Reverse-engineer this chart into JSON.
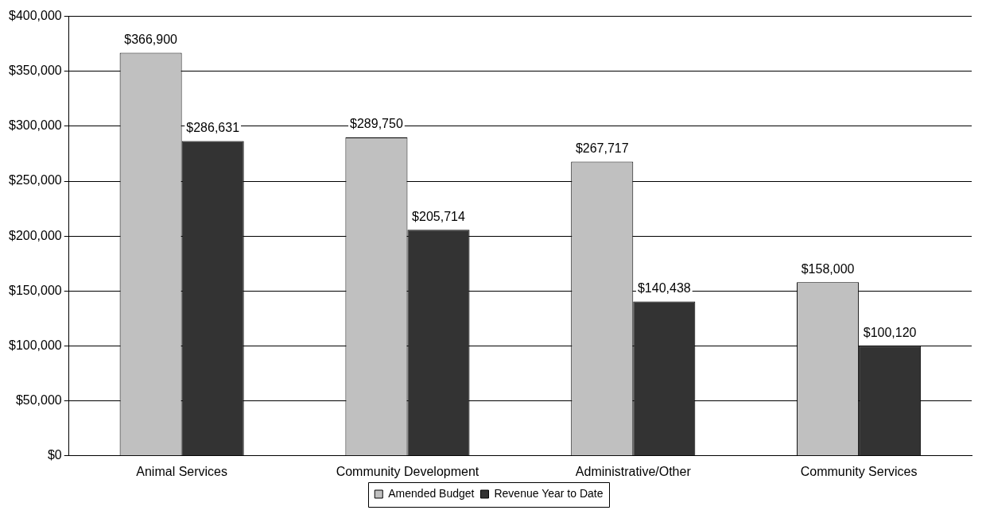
{
  "chart_data": {
    "type": "bar",
    "categories": [
      "Animal Services",
      "Community Development",
      "Administrative/Other",
      "Community Services"
    ],
    "series": [
      {
        "name": "Amended Budget",
        "color": "#c0c0c0",
        "values": [
          366900,
          289750,
          267717,
          158000
        ],
        "value_labels": [
          "$366,900",
          "$289,750",
          "$267,717",
          "$158,000"
        ]
      },
      {
        "name": "Revenue Year to Date",
        "color": "#333333",
        "values": [
          286631,
          205714,
          140438,
          100120
        ],
        "value_labels": [
          "$286,631",
          "$205,714",
          "$140,438",
          "$100,120"
        ]
      }
    ],
    "ylim": [
      0,
      400000
    ],
    "yticks": [
      {
        "value": 0,
        "label": "$0"
      },
      {
        "value": 50000,
        "label": "$50,000"
      },
      {
        "value": 100000,
        "label": "$100,000"
      },
      {
        "value": 150000,
        "label": "$150,000"
      },
      {
        "value": 200000,
        "label": "$200,000"
      },
      {
        "value": 250000,
        "label": "$250,000"
      },
      {
        "value": 300000,
        "label": "$300,000"
      },
      {
        "value": 350000,
        "label": "$350,000"
      },
      {
        "value": 400000,
        "label": "$400,000"
      }
    ],
    "grid": "y",
    "legend": "bottom"
  }
}
